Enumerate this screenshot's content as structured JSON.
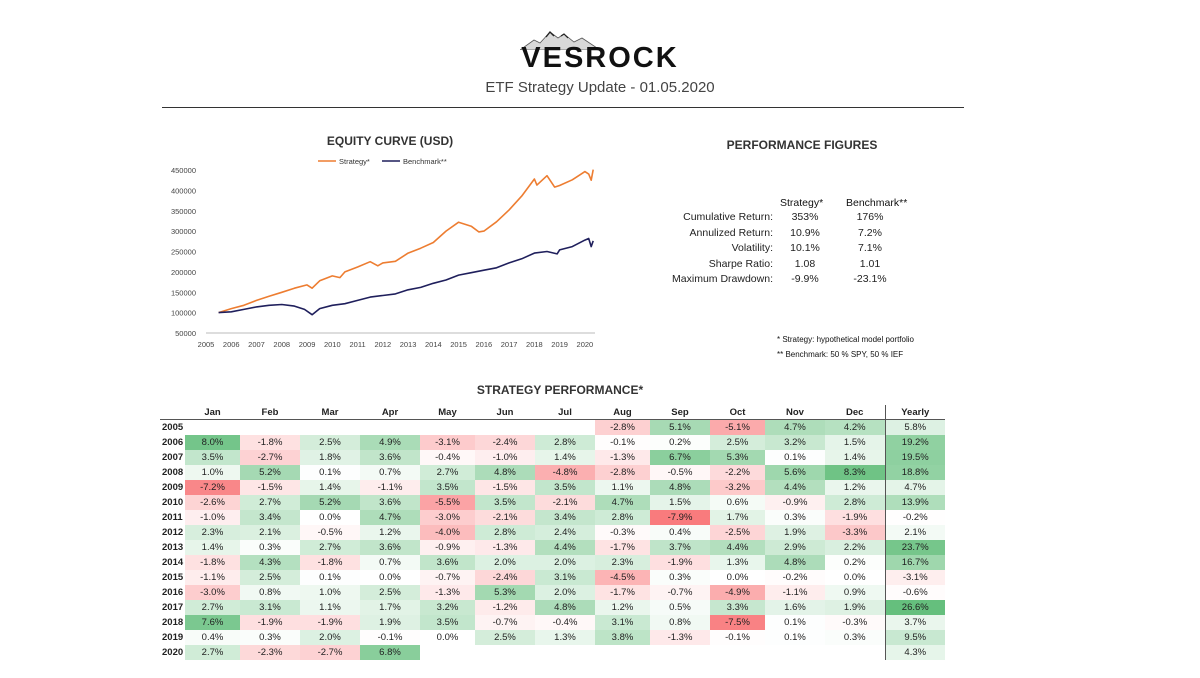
{
  "header": {
    "brand": "VESROCK",
    "subtitle": "ETF Strategy Update - 01.05.2020"
  },
  "equity_chart": {
    "title": "EQUITY CURVE (USD)",
    "legend": [
      "Strategy*",
      "Benchmark**"
    ]
  },
  "performance_figures": {
    "title": "PERFORMANCE FIGURES",
    "col_strategy": "Strategy*",
    "col_benchmark": "Benchmark**",
    "rows": [
      {
        "label": "Cumulative Return:",
        "strategy": "353%",
        "benchmark": "176%"
      },
      {
        "label": "Annulized Return:",
        "strategy": "10.9%",
        "benchmark": "7.2%"
      },
      {
        "label": "Volatility:",
        "strategy": "10.1%",
        "benchmark": "7.1%"
      },
      {
        "label": "Sharpe Ratio:",
        "strategy": "1.08",
        "benchmark": "1.01"
      },
      {
        "label": "Maximum Drawdown:",
        "strategy": "-9.9%",
        "benchmark": "-23.1%"
      }
    ],
    "notes": [
      "* Strategy: hypothetical model portfolio",
      "** Benchmark: 50 % SPY, 50 % IEF"
    ]
  },
  "strategy_performance": {
    "title": "STRATEGY PERFORMANCE*",
    "months": [
      "Jan",
      "Feb",
      "Mar",
      "Apr",
      "May",
      "Jun",
      "Jul",
      "Aug",
      "Sep",
      "Oct",
      "Nov",
      "Dec"
    ],
    "yearly_label": "Yearly",
    "rows": [
      {
        "year": "2005",
        "m": [
          "",
          "",
          "",
          "",
          "",
          "",
          "",
          "-2.8%",
          "5.1%",
          "-5.1%",
          "4.7%",
          "4.2%"
        ],
        "yearly": "5.8%"
      },
      {
        "year": "2006",
        "m": [
          "8.0%",
          "-1.8%",
          "2.5%",
          "4.9%",
          "-3.1%",
          "-2.4%",
          "2.8%",
          "-0.1%",
          "0.2%",
          "2.5%",
          "3.2%",
          "1.5%"
        ],
        "yearly": "19.2%"
      },
      {
        "year": "2007",
        "m": [
          "3.5%",
          "-2.7%",
          "1.8%",
          "3.6%",
          "-0.4%",
          "-1.0%",
          "1.4%",
          "-1.3%",
          "6.7%",
          "5.3%",
          "0.1%",
          "1.4%"
        ],
        "yearly": "19.5%"
      },
      {
        "year": "2008",
        "m": [
          "1.0%",
          "5.2%",
          "0.1%",
          "0.7%",
          "2.7%",
          "4.8%",
          "-4.8%",
          "-2.8%",
          "-0.5%",
          "-2.2%",
          "5.6%",
          "8.3%"
        ],
        "yearly": "18.8%"
      },
      {
        "year": "2009",
        "m": [
          "-7.2%",
          "-1.5%",
          "1.4%",
          "-1.1%",
          "3.5%",
          "-1.5%",
          "3.5%",
          "1.1%",
          "4.8%",
          "-3.2%",
          "4.4%",
          "1.2%"
        ],
        "yearly": "4.7%"
      },
      {
        "year": "2010",
        "m": [
          "-2.6%",
          "2.7%",
          "5.2%",
          "3.6%",
          "-5.5%",
          "3.5%",
          "-2.1%",
          "4.7%",
          "1.5%",
          "0.6%",
          "-0.9%",
          "2.8%"
        ],
        "yearly": "13.9%"
      },
      {
        "year": "2011",
        "m": [
          "-1.0%",
          "3.4%",
          "0.0%",
          "4.7%",
          "-3.0%",
          "-2.1%",
          "3.4%",
          "2.8%",
          "-7.9%",
          "1.7%",
          "0.3%",
          "-1.9%"
        ],
        "yearly": "-0.2%"
      },
      {
        "year": "2012",
        "m": [
          "2.3%",
          "2.1%",
          "-0.5%",
          "1.2%",
          "-4.0%",
          "2.8%",
          "2.4%",
          "-0.3%",
          "0.4%",
          "-2.5%",
          "1.9%",
          "-3.3%"
        ],
        "yearly": "2.1%"
      },
      {
        "year": "2013",
        "m": [
          "1.4%",
          "0.3%",
          "2.7%",
          "3.6%",
          "-0.9%",
          "-1.3%",
          "4.4%",
          "-1.7%",
          "3.7%",
          "4.4%",
          "2.9%",
          "2.2%"
        ],
        "yearly": "23.7%"
      },
      {
        "year": "2014",
        "m": [
          "-1.8%",
          "4.3%",
          "-1.8%",
          "0.7%",
          "3.6%",
          "2.0%",
          "2.0%",
          "2.3%",
          "-1.9%",
          "1.3%",
          "4.8%",
          "0.2%"
        ],
        "yearly": "16.7%"
      },
      {
        "year": "2015",
        "m": [
          "-1.1%",
          "2.5%",
          "0.1%",
          "0.0%",
          "-0.7%",
          "-2.4%",
          "3.1%",
          "-4.5%",
          "0.3%",
          "0.0%",
          "-0.2%",
          "0.0%"
        ],
        "yearly": "-3.1%"
      },
      {
        "year": "2016",
        "m": [
          "-3.0%",
          "0.8%",
          "1.0%",
          "2.5%",
          "-1.3%",
          "5.3%",
          "2.0%",
          "-1.7%",
          "-0.7%",
          "-4.9%",
          "-1.1%",
          "0.9%"
        ],
        "yearly": "-0.6%"
      },
      {
        "year": "2017",
        "m": [
          "2.7%",
          "3.1%",
          "1.1%",
          "1.7%",
          "3.2%",
          "-1.2%",
          "4.8%",
          "1.2%",
          "0.5%",
          "3.3%",
          "1.6%",
          "1.9%"
        ],
        "yearly": "26.6%"
      },
      {
        "year": "2018",
        "m": [
          "7.6%",
          "-1.9%",
          "-1.9%",
          "1.9%",
          "3.5%",
          "-0.7%",
          "-0.4%",
          "3.1%",
          "0.8%",
          "-7.5%",
          "0.1%",
          "-0.3%"
        ],
        "yearly": "3.7%"
      },
      {
        "year": "2019",
        "m": [
          "0.4%",
          "0.3%",
          "2.0%",
          "-0.1%",
          "0.0%",
          "2.5%",
          "1.3%",
          "3.8%",
          "-1.3%",
          "-0.1%",
          "0.1%",
          "0.3%"
        ],
        "yearly": "9.5%"
      },
      {
        "year": "2020",
        "m": [
          "2.7%",
          "-2.3%",
          "-2.7%",
          "6.8%",
          "",
          "",
          "",
          "",
          "",
          "",
          "",
          ""
        ],
        "yearly": "4.3%"
      }
    ]
  },
  "colors": {
    "strategy_line": "#ED7D31",
    "benchmark_line": "#1F1F5C",
    "positive": "#63BE7B",
    "negative": "#F8696B"
  },
  "chart_data": {
    "type": "line",
    "title": "EQUITY CURVE (USD)",
    "xlabel": "",
    "ylabel": "",
    "x_ticks": [
      "2005",
      "2006",
      "2007",
      "2008",
      "2009",
      "2010",
      "2011",
      "2012",
      "2013",
      "2014",
      "2015",
      "2016",
      "2017",
      "2018",
      "2019",
      "2020"
    ],
    "y_ticks": [
      50000,
      100000,
      150000,
      200000,
      250000,
      300000,
      350000,
      400000,
      450000
    ],
    "xlim": [
      2005,
      2020.4
    ],
    "ylim": [
      50000,
      450000
    ],
    "legend": "top-center",
    "series": [
      {
        "name": "Strategy*",
        "x": [
          2005.5,
          2006.0,
          2006.5,
          2007.0,
          2007.5,
          2008.0,
          2008.5,
          2009.0,
          2009.2,
          2009.5,
          2010.0,
          2010.3,
          2010.5,
          2011.0,
          2011.5,
          2011.8,
          2012.0,
          2012.5,
          2013.0,
          2013.5,
          2014.0,
          2014.5,
          2015.0,
          2015.5,
          2015.8,
          2016.0,
          2016.5,
          2017.0,
          2017.5,
          2018.0,
          2018.1,
          2018.5,
          2018.8,
          2019.0,
          2019.5,
          2019.8,
          2020.0,
          2020.15,
          2020.25,
          2020.33
        ],
        "y": [
          100000,
          110000,
          118000,
          130000,
          140000,
          150000,
          160000,
          168000,
          160000,
          178000,
          190000,
          186000,
          200000,
          212000,
          225000,
          215000,
          222000,
          226000,
          246000,
          258000,
          272000,
          300000,
          322000,
          312000,
          298000,
          300000,
          323000,
          352000,
          386000,
          428000,
          413000,
          436000,
          408000,
          412000,
          426000,
          438000,
          446000,
          440000,
          425000,
          451000
        ]
      },
      {
        "name": "Benchmark**",
        "x": [
          2005.5,
          2006.0,
          2006.5,
          2007.0,
          2007.5,
          2008.0,
          2008.5,
          2008.9,
          2009.2,
          2009.5,
          2010.0,
          2010.5,
          2011.0,
          2011.5,
          2012.0,
          2012.5,
          2013.0,
          2013.5,
          2014.0,
          2014.5,
          2015.0,
          2015.5,
          2016.0,
          2016.5,
          2017.0,
          2017.5,
          2018.0,
          2018.5,
          2018.9,
          2019.0,
          2019.5,
          2020.0,
          2020.15,
          2020.25,
          2020.33
        ],
        "y": [
          100000,
          102000,
          108000,
          114000,
          118000,
          120000,
          116000,
          108000,
          95000,
          110000,
          118000,
          122000,
          130000,
          138000,
          142000,
          146000,
          156000,
          162000,
          172000,
          180000,
          192000,
          198000,
          204000,
          210000,
          222000,
          232000,
          246000,
          250000,
          244000,
          254000,
          262000,
          278000,
          282000,
          262000,
          276000
        ]
      }
    ]
  }
}
